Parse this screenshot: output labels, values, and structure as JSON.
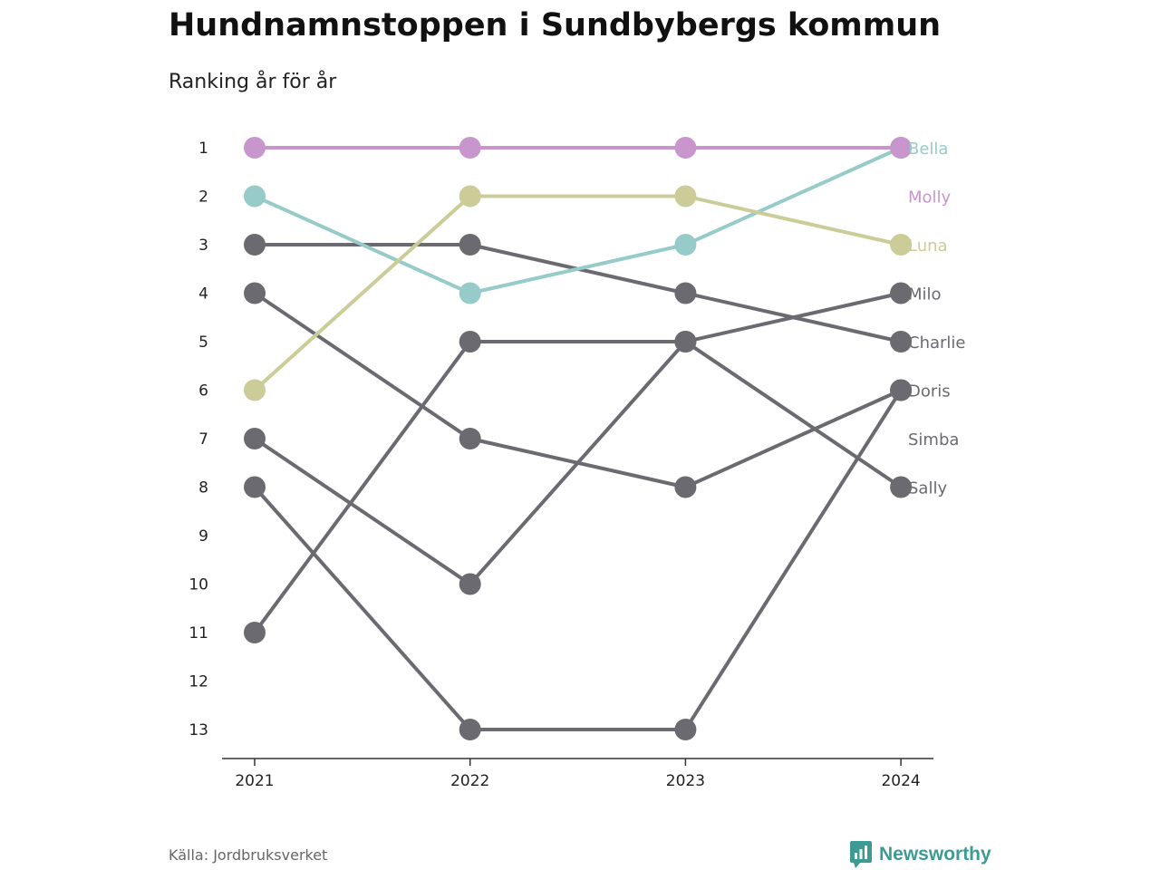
{
  "title": "Hundnamnstoppen i Sundbybergs kommun",
  "subtitle": "Ranking år för år",
  "source": "Källa: Jordbruksverket",
  "brand": "Newsworthy",
  "colors": {
    "gray": "#6b6a70",
    "Bella": "#97cbc9",
    "Molly": "#c896cc",
    "Luna": "#cccc99",
    "brand": "#3d9b94"
  },
  "chart_data": {
    "type": "line",
    "x": [
      "2021",
      "2022",
      "2023",
      "2024"
    ],
    "y_ticks": [
      1,
      2,
      3,
      4,
      5,
      6,
      7,
      8,
      9,
      10,
      11,
      12,
      13
    ],
    "ylim": [
      1,
      13
    ],
    "y_inverted": true,
    "series": [
      {
        "name": "Milo",
        "values": [
          11,
          5,
          5,
          4
        ],
        "color": "#6b6a70",
        "label_color": "#6b6a70"
      },
      {
        "name": "Charlie",
        "values": [
          3,
          3,
          4,
          5
        ],
        "color": "#6b6a70",
        "label_color": "#6b6a70"
      },
      {
        "name": "Doris",
        "values": [
          8,
          13,
          13,
          6
        ],
        "color": "#6b6a70",
        "label_color": "#6b6a70"
      },
      {
        "name": "Simba",
        "values": [
          4,
          7,
          8,
          6
        ],
        "color": "#6b6a70",
        "label_color": "#6b6a70"
      },
      {
        "name": "Sally",
        "values": [
          7,
          10,
          5,
          8
        ],
        "color": "#6b6a70",
        "label_color": "#6b6a70"
      },
      {
        "name": "Bella",
        "values": [
          2,
          4,
          3,
          1
        ],
        "color": "#97cbc9",
        "label_color": "#97cbc9"
      },
      {
        "name": "Luna",
        "values": [
          6,
          2,
          2,
          3
        ],
        "color": "#cccc99",
        "label_color": "#cccc99"
      },
      {
        "name": "Molly",
        "values": [
          1,
          1,
          1,
          1
        ],
        "color": "#c896cc",
        "label_color": "#c896cc"
      }
    ],
    "labels_order": [
      "Bella",
      "Molly",
      "Luna",
      "Milo",
      "Charlie",
      "Doris",
      "Simba",
      "Sally"
    ]
  }
}
